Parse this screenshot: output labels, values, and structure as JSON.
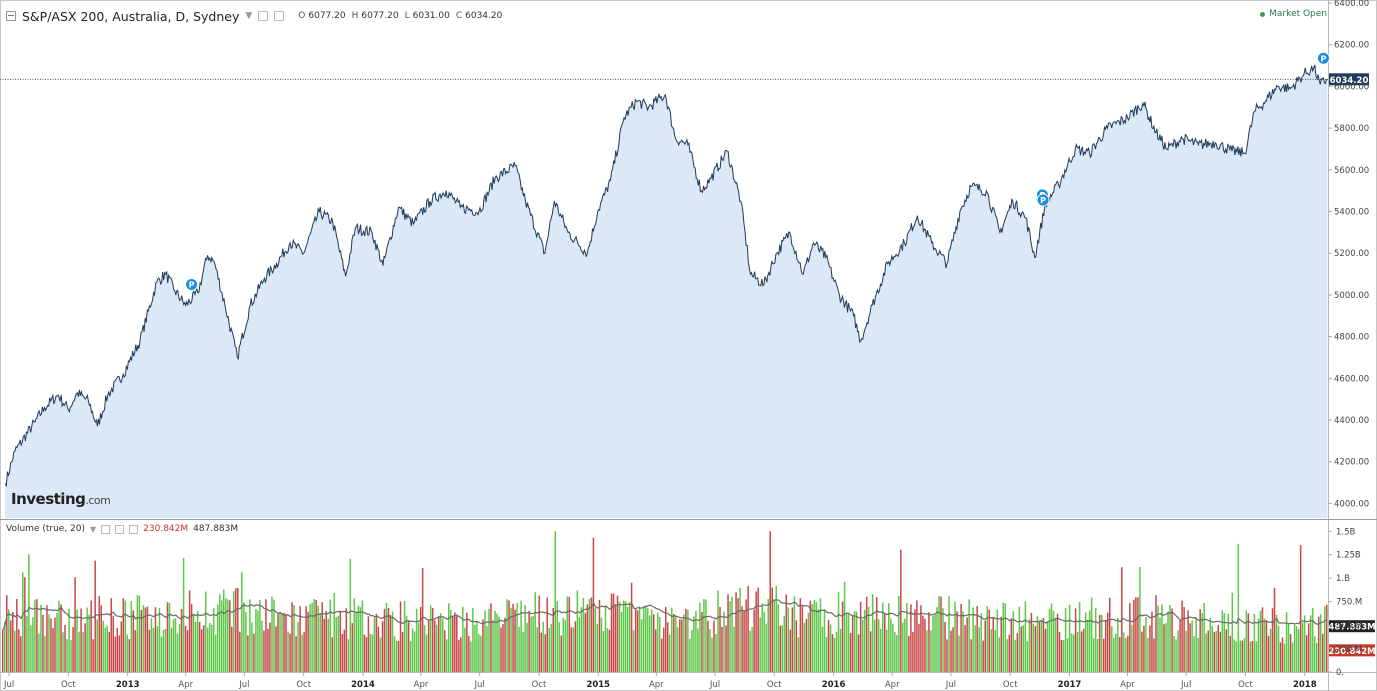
{
  "header": {
    "symbol": "S&P/ASX 200, Australia, D, Sydney",
    "ohlc": [
      {
        "label": "O",
        "value": "6077.20"
      },
      {
        "label": "H",
        "value": "6077.20"
      },
      {
        "label": "L",
        "value": "6031.00"
      },
      {
        "label": "C",
        "value": "6034.20"
      }
    ]
  },
  "status": {
    "market": "Market Open"
  },
  "logo": {
    "main": "Investing",
    "suffix": ".com"
  },
  "volume_header": {
    "label": "Volume (true, 20)",
    "value_red": "230.842M",
    "value_black": "487.883M"
  },
  "colors": {
    "line": "#1f3a5a",
    "area": "#dbe8f6",
    "vol_up": "#5ec84a",
    "vol_down": "#c9484a",
    "ma": "#6a6a6a",
    "last_price_tag": "#1f3a5a"
  },
  "chart_data": [
    {
      "type": "area",
      "series": [
        {
          "name": "S&P/ASX 200",
          "values": [
            [
              "2012-06-25",
              4095
            ],
            [
              "2012-07-10",
              4250
            ],
            [
              "2012-08-10",
              4390
            ],
            [
              "2012-08-25",
              4460
            ],
            [
              "2012-09-15",
              4520
            ],
            [
              "2012-10-01",
              4450
            ],
            [
              "2012-10-15",
              4530
            ],
            [
              "2012-11-01",
              4490
            ],
            [
              "2012-11-15",
              4370
            ],
            [
              "2012-12-01",
              4520
            ],
            [
              "2012-12-25",
              4620
            ],
            [
              "2013-01-20",
              4780
            ],
            [
              "2013-02-15",
              5060
            ],
            [
              "2013-03-01",
              5100
            ],
            [
              "2013-03-15",
              5020
            ],
            [
              "2013-04-01",
              4950
            ],
            [
              "2013-04-20",
              5010
            ],
            [
              "2013-05-05",
              5190
            ],
            [
              "2013-05-15",
              5160
            ],
            [
              "2013-06-01",
              4950
            ],
            [
              "2013-06-20",
              4700
            ],
            [
              "2013-07-10",
              4950
            ],
            [
              "2013-08-01",
              5080
            ],
            [
              "2013-08-20",
              5150
            ],
            [
              "2013-09-10",
              5250
            ],
            [
              "2013-10-01",
              5200
            ],
            [
              "2013-10-25",
              5400
            ],
            [
              "2013-11-15",
              5350
            ],
            [
              "2013-12-05",
              5090
            ],
            [
              "2013-12-20",
              5320
            ],
            [
              "2014-01-15",
              5300
            ],
            [
              "2014-02-01",
              5140
            ],
            [
              "2014-02-25",
              5420
            ],
            [
              "2014-03-20",
              5340
            ],
            [
              "2014-04-15",
              5450
            ],
            [
              "2014-05-10",
              5500
            ],
            [
              "2014-06-01",
              5420
            ],
            [
              "2014-06-30",
              5400
            ],
            [
              "2014-07-25",
              5560
            ],
            [
              "2014-08-25",
              5620
            ],
            [
              "2014-09-10",
              5450
            ],
            [
              "2014-10-10",
              5200
            ],
            [
              "2014-10-25",
              5450
            ],
            [
              "2014-11-15",
              5300
            ],
            [
              "2014-12-15",
              5200
            ],
            [
              "2014-12-31",
              5400
            ],
            [
              "2015-01-20",
              5550
            ],
            [
              "2015-02-10",
              5850
            ],
            [
              "2015-03-01",
              5930
            ],
            [
              "2015-03-20",
              5900
            ],
            [
              "2015-04-15",
              5960
            ],
            [
              "2015-05-01",
              5750
            ],
            [
              "2015-05-20",
              5720
            ],
            [
              "2015-06-10",
              5500
            ],
            [
              "2015-06-25",
              5560
            ],
            [
              "2015-07-20",
              5690
            ],
            [
              "2015-08-10",
              5450
            ],
            [
              "2015-08-25",
              5100
            ],
            [
              "2015-09-15",
              5050
            ],
            [
              "2015-10-05",
              5200
            ],
            [
              "2015-10-25",
              5300
            ],
            [
              "2015-11-15",
              5100
            ],
            [
              "2015-12-01",
              5250
            ],
            [
              "2015-12-20",
              5180
            ],
            [
              "2016-01-10",
              5000
            ],
            [
              "2016-02-01",
              4900
            ],
            [
              "2016-02-12",
              4780
            ],
            [
              "2016-03-01",
              4950
            ],
            [
              "2016-03-25",
              5150
            ],
            [
              "2016-04-20",
              5250
            ],
            [
              "2016-05-10",
              5380
            ],
            [
              "2016-06-01",
              5250
            ],
            [
              "2016-06-25",
              5150
            ],
            [
              "2016-07-15",
              5400
            ],
            [
              "2016-08-01",
              5520
            ],
            [
              "2016-08-25",
              5500
            ],
            [
              "2016-09-15",
              5300
            ],
            [
              "2016-10-05",
              5450
            ],
            [
              "2016-10-25",
              5370
            ],
            [
              "2016-11-08",
              5180
            ],
            [
              "2016-11-25",
              5440
            ],
            [
              "2016-12-15",
              5530
            ],
            [
              "2017-01-10",
              5700
            ],
            [
              "2017-02-01",
              5680
            ],
            [
              "2017-03-01",
              5800
            ],
            [
              "2017-04-01",
              5850
            ],
            [
              "2017-04-25",
              5920
            ],
            [
              "2017-05-15",
              5780
            ],
            [
              "2017-06-01",
              5700
            ],
            [
              "2017-06-25",
              5750
            ],
            [
              "2017-07-20",
              5720
            ],
            [
              "2017-08-15",
              5730
            ],
            [
              "2017-09-10",
              5690
            ],
            [
              "2017-09-30",
              5680
            ],
            [
              "2017-10-15",
              5880
            ],
            [
              "2017-11-01",
              5930
            ],
            [
              "2017-11-20",
              6000
            ],
            [
              "2017-12-10",
              5990
            ],
            [
              "2017-12-31",
              6060
            ],
            [
              "2018-01-15",
              6090
            ],
            [
              "2018-01-25",
              6010
            ],
            [
              "2018-02-05",
              6034.2
            ]
          ]
        }
      ],
      "y_ticks": [
        "4000.00",
        "4200.00",
        "4400.00",
        "4600.00",
        "4800.00",
        "5000.00",
        "5200.00",
        "5400.00",
        "5600.00",
        "5800.00",
        "6000.00",
        "6200.00",
        "6400.00"
      ],
      "ylim": [
        3930,
        6405
      ],
      "xlim": [
        "2012-06-20",
        "2018-02-06"
      ],
      "last_value": "6034.20",
      "last_value_number": 6034.2,
      "markers": [
        {
          "date": "2013-04-10",
          "value": 5050,
          "label": "P"
        },
        {
          "date": "2016-11-20",
          "value": 5480,
          "label": "P"
        },
        {
          "date": "2016-11-21",
          "value": 5455,
          "label": "P"
        },
        {
          "date": "2018-01-30",
          "value": 6135,
          "label": "P"
        }
      ]
    },
    {
      "type": "bar",
      "title": "Volume (true, 20)",
      "ma_period": 20,
      "y_ticks": [
        "0.",
        "250.M",
        "500.M",
        "750.M",
        "1.B",
        "1.25B",
        "1.5B"
      ],
      "ylim": [
        0,
        1620
      ],
      "xlim": [
        "2012-06-20",
        "2018-02-06"
      ],
      "last_labels": [
        {
          "text": "487.883M",
          "value": 487.883
        },
        {
          "text": "230.842M",
          "value": 230.842
        }
      ],
      "volume_profile": [
        [
          "2012-06-20",
          640
        ],
        [
          "2012-09-01",
          620
        ],
        [
          "2012-12-01",
          610
        ],
        [
          "2013-03-01",
          660
        ],
        [
          "2013-06-01",
          720
        ],
        [
          "2013-09-01",
          600
        ],
        [
          "2013-12-01",
          610
        ],
        [
          "2014-03-01",
          600
        ],
        [
          "2014-06-01",
          560
        ],
        [
          "2014-09-01",
          640
        ],
        [
          "2014-12-01",
          680
        ],
        [
          "2015-03-01",
          640
        ],
        [
          "2015-06-01",
          620
        ],
        [
          "2015-09-01",
          750
        ],
        [
          "2015-12-01",
          640
        ],
        [
          "2016-03-01",
          680
        ],
        [
          "2016-06-01",
          650
        ],
        [
          "2016-09-01",
          580
        ],
        [
          "2016-12-01",
          600
        ],
        [
          "2017-03-01",
          620
        ],
        [
          "2017-06-01",
          640
        ],
        [
          "2017-09-01",
          560
        ],
        [
          "2017-12-01",
          540
        ],
        [
          "2018-02-06",
          560
        ]
      ]
    }
  ],
  "x_ticks": [
    {
      "label": "Jul",
      "date": "2012-07-01"
    },
    {
      "label": "Oct",
      "date": "2012-10-01"
    },
    {
      "label": "2013",
      "date": "2013-01-01",
      "bold": true
    },
    {
      "label": "Apr",
      "date": "2013-04-01"
    },
    {
      "label": "Jul",
      "date": "2013-07-01"
    },
    {
      "label": "Oct",
      "date": "2013-10-01"
    },
    {
      "label": "2014",
      "date": "2014-01-01",
      "bold": true
    },
    {
      "label": "Apr",
      "date": "2014-04-01"
    },
    {
      "label": "Jul",
      "date": "2014-07-01"
    },
    {
      "label": "Oct",
      "date": "2014-10-01"
    },
    {
      "label": "2015",
      "date": "2015-01-01",
      "bold": true
    },
    {
      "label": "Apr",
      "date": "2015-04-01"
    },
    {
      "label": "Jul",
      "date": "2015-07-01"
    },
    {
      "label": "Oct",
      "date": "2015-10-01"
    },
    {
      "label": "2016",
      "date": "2016-01-01",
      "bold": true
    },
    {
      "label": "Apr",
      "date": "2016-04-01"
    },
    {
      "label": "Jul",
      "date": "2016-07-01"
    },
    {
      "label": "Oct",
      "date": "2016-10-01"
    },
    {
      "label": "2017",
      "date": "2017-01-01",
      "bold": true
    },
    {
      "label": "Apr",
      "date": "2017-04-01"
    },
    {
      "label": "Jul",
      "date": "2017-07-01"
    },
    {
      "label": "Oct",
      "date": "2017-10-01"
    },
    {
      "label": "2018",
      "date": "2018-01-01",
      "bold": true
    }
  ]
}
